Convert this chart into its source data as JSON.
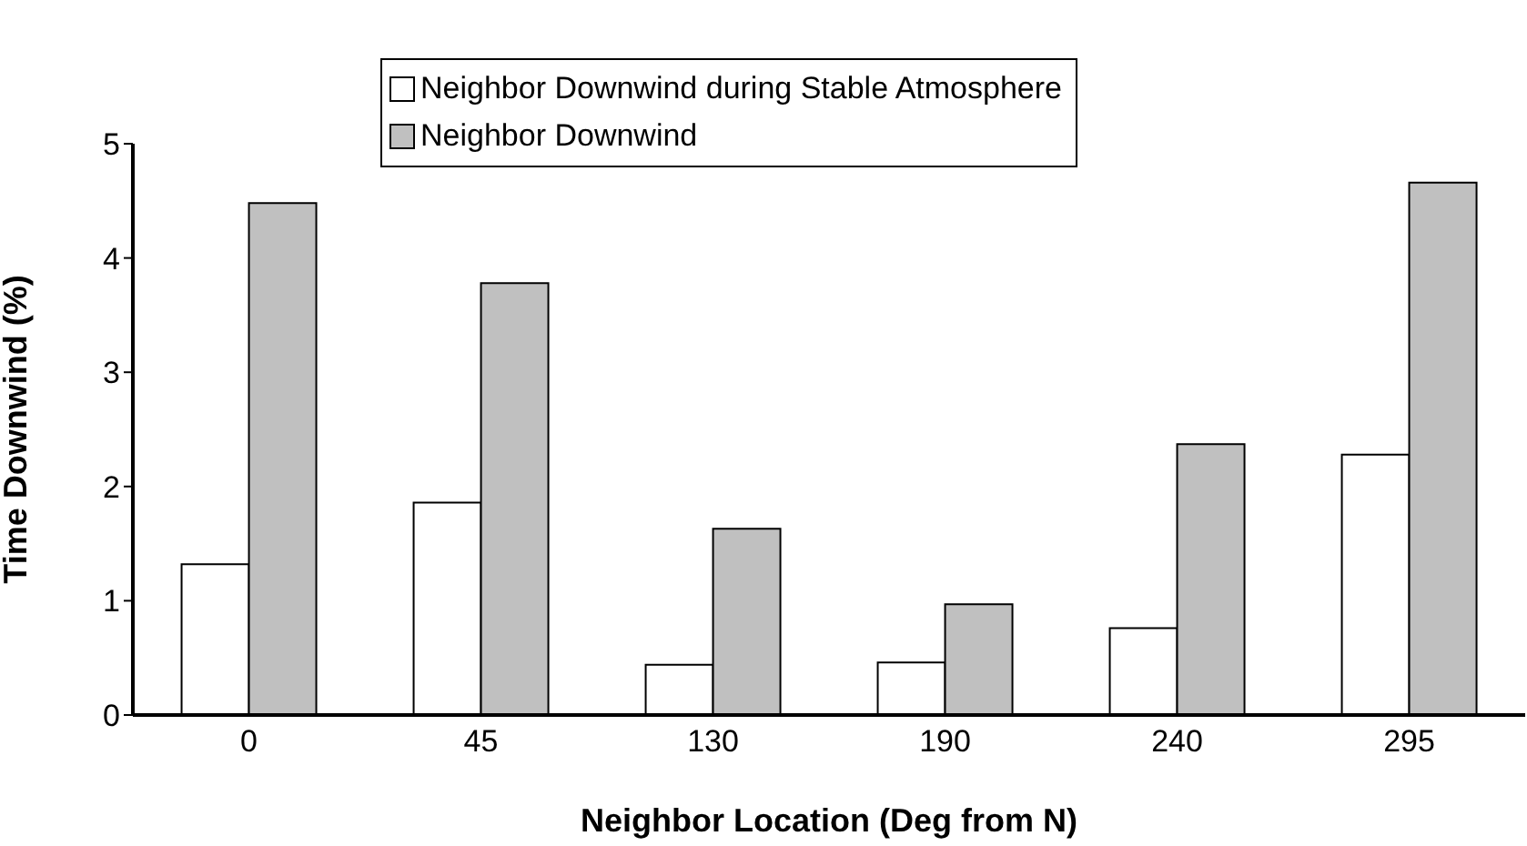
{
  "chart_data": {
    "type": "bar",
    "xlabel": "Neighbor Location (Deg from N)",
    "ylabel": "Time Downwind (%)",
    "categories": [
      "0",
      "45",
      "130",
      "190",
      "240",
      "295"
    ],
    "series": [
      {
        "name": "Neighbor Downwind during Stable Atmosphere",
        "color": "#ffffff",
        "values": [
          1.32,
          1.86,
          0.44,
          0.46,
          0.76,
          2.28
        ]
      },
      {
        "name": "Neighbor Downwind",
        "color": "#c0c0c0",
        "values": [
          4.48,
          3.78,
          1.63,
          0.97,
          2.37,
          4.66
        ]
      }
    ],
    "ylim": [
      0,
      5
    ],
    "yticks": [
      0,
      1,
      2,
      3,
      4,
      5
    ],
    "grid": false,
    "legend": "top"
  }
}
